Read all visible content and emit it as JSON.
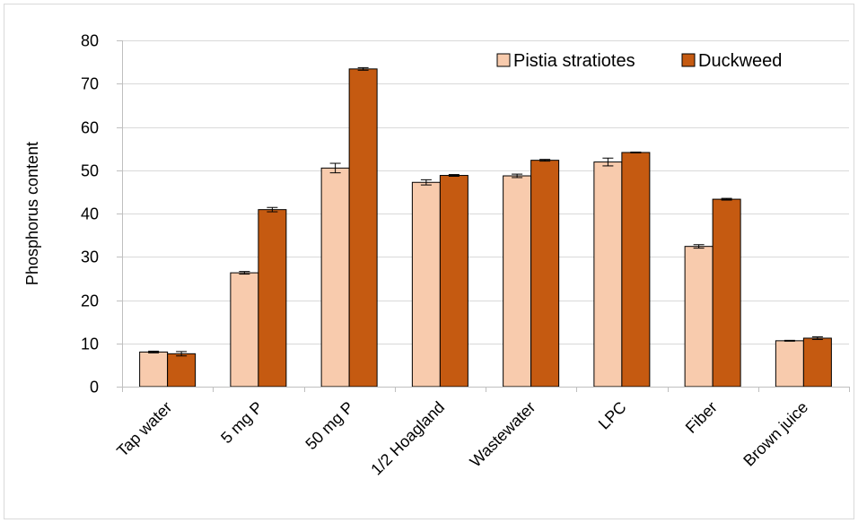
{
  "chart_data": {
    "type": "bar",
    "title": "",
    "xlabel": "",
    "ylabel": "Phosphorus content",
    "ylim": [
      0,
      80
    ],
    "yticks": [
      0,
      10,
      20,
      30,
      40,
      50,
      60,
      70,
      80
    ],
    "grid": true,
    "legend_position": "top-right",
    "categories": [
      "Tap water",
      "5 mg P",
      "50 mg P",
      "1/2 Hoagland",
      "Wastewater",
      "LPC",
      "Fiber",
      "Brown juice"
    ],
    "series": [
      {
        "name": "Pistia stratiotes",
        "color": "#f8cbad",
        "values": [
          8.0,
          26.3,
          50.5,
          47.2,
          48.7,
          51.9,
          32.4,
          10.6
        ],
        "errors": [
          0.2,
          0.3,
          1.1,
          0.6,
          0.4,
          0.9,
          0.4,
          0.1
        ]
      },
      {
        "name": "Duckweed",
        "color": "#c55a11",
        "values": [
          7.6,
          40.9,
          73.4,
          48.8,
          52.3,
          54.1,
          43.3,
          11.2
        ],
        "errors": [
          0.5,
          0.5,
          0.3,
          0.2,
          0.2,
          0.1,
          0.2,
          0.3
        ]
      }
    ]
  }
}
